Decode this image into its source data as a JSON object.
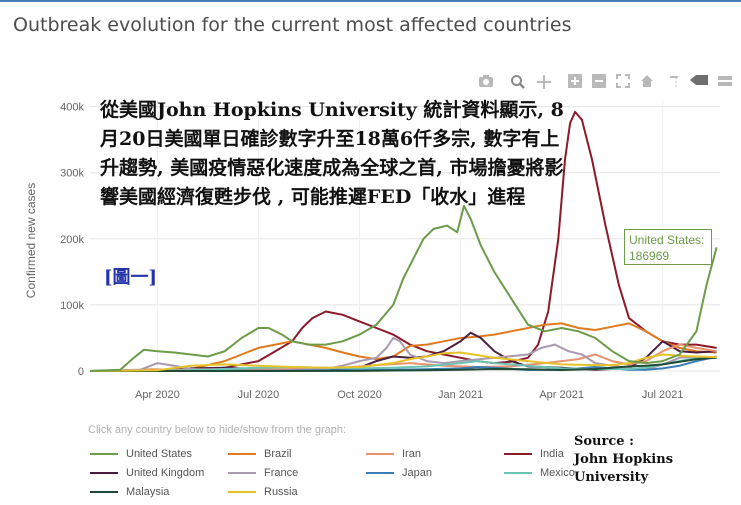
{
  "title": "Outbreak evolution for the current most affected countries",
  "hint": "Click any country below to hide/show from the graph:",
  "overlay_text": "從美國John Hopkins University 統計資料顯示, 8月20日美國單日確診數字升至18萬6仟多宗, 數字有上升趨勢, 美國疫情惡化速度成為全球之首, 市場擔憂將影響美國經濟復甦步伐 , 可能推遲FED「收水」進程",
  "figure_label": "[圖一]",
  "source_line1": "Source :",
  "source_line2": "John Hopkins University",
  "tooltip": {
    "country": "United States:",
    "value": "186969"
  },
  "modebar_icons": [
    "camera-icon",
    "zoom-icon",
    "pan-icon",
    "zoom-in-icon",
    "zoom-out-icon",
    "autoscale-icon",
    "reset-axes-icon",
    "spike-lines-icon",
    "hover-closest-icon",
    "hover-compare-icon"
  ],
  "chart_data": {
    "type": "line",
    "title": "Outbreak evolution for the current most affected countries",
    "xlabel": "",
    "ylabel": "Confirmed new cases",
    "x_ticks": [
      "Apr 2020",
      "Jul 2020",
      "Oct 2020",
      "Jan 2021",
      "Apr 2021",
      "Jul 2021"
    ],
    "y_ticks": [
      "0",
      "100k",
      "200k",
      "300k",
      "400k"
    ],
    "ylim": [
      0,
      410000
    ],
    "x_unit": "months since Jan 2020",
    "xlim": [
      1,
      19.7
    ],
    "series": [
      {
        "name": "United States",
        "color": "#6c9b4a",
        "x": [
          1,
          1.9,
          2.3,
          2.6,
          3,
          3.5,
          4,
          4.5,
          5,
          5.5,
          6,
          6.3,
          6.5,
          6.7,
          7,
          7.5,
          8,
          8.5,
          9,
          9.5,
          10,
          10.3,
          10.6,
          10.9,
          11.2,
          11.6,
          11.9,
          12.1,
          12.3,
          12.6,
          13,
          13.5,
          14,
          14.5,
          15,
          15.5,
          16,
          16.5,
          17,
          17.5,
          18,
          18.5,
          19,
          19.3,
          19.6
        ],
        "y": [
          0,
          2000,
          20000,
          32000,
          30000,
          28000,
          25000,
          22000,
          30000,
          50000,
          65000,
          65000,
          60000,
          55000,
          45000,
          40000,
          40000,
          45000,
          55000,
          70000,
          100000,
          140000,
          170000,
          200000,
          215000,
          220000,
          210000,
          250000,
          230000,
          190000,
          150000,
          110000,
          70000,
          60000,
          65000,
          60000,
          50000,
          30000,
          15000,
          12000,
          15000,
          25000,
          60000,
          130000,
          187000
        ]
      },
      {
        "name": "India",
        "color": "#8b1a2b",
        "x": [
          1,
          4,
          5,
          6,
          6.5,
          7,
          7.3,
          7.6,
          8,
          8.5,
          9,
          9.5,
          10,
          10.5,
          11,
          11.5,
          12,
          12.5,
          13,
          13.5,
          14,
          14.3,
          14.6,
          14.9,
          15.1,
          15.25,
          15.4,
          15.6,
          15.9,
          16.3,
          16.7,
          17,
          17.5,
          18,
          18.5,
          19,
          19.6
        ],
        "y": [
          0,
          0,
          5000,
          15000,
          30000,
          45000,
          65000,
          80000,
          90000,
          85000,
          75000,
          65000,
          55000,
          40000,
          30000,
          25000,
          20000,
          15000,
          12000,
          14000,
          20000,
          40000,
          90000,
          200000,
          320000,
          375000,
          392000,
          380000,
          320000,
          220000,
          130000,
          80000,
          60000,
          45000,
          40000,
          40000,
          35000
        ]
      },
      {
        "name": "Brazil",
        "color": "#e07a1f",
        "x": [
          1,
          3.5,
          4,
          5,
          5.5,
          6,
          6.5,
          7,
          7.5,
          8,
          8.5,
          9,
          9.5,
          10,
          10.5,
          11,
          11.5,
          12,
          12.5,
          13,
          13.5,
          14,
          14.5,
          15,
          15.5,
          16,
          16.5,
          17,
          17.5,
          18,
          18.5,
          19,
          19.6
        ],
        "y": [
          0,
          500,
          3000,
          15000,
          25000,
          35000,
          40000,
          45000,
          40000,
          35000,
          28000,
          22000,
          18000,
          22000,
          38000,
          40000,
          45000,
          50000,
          52000,
          55000,
          60000,
          65000,
          70000,
          72000,
          65000,
          62000,
          67000,
          72000,
          60000,
          45000,
          35000,
          30000,
          28000
        ]
      },
      {
        "name": "United Kingdom",
        "color": "#4b1e3f",
        "x": [
          1,
          3,
          4,
          5,
          6,
          7,
          8,
          8.5,
          9,
          9.5,
          10,
          10.5,
          11,
          11.5,
          12,
          12.3,
          12.6,
          13,
          13.5,
          14,
          15,
          16,
          16.5,
          17,
          17.5,
          18,
          18.5,
          19,
          19.6
        ],
        "y": [
          0,
          1000,
          4000,
          5000,
          3000,
          1500,
          1000,
          3000,
          5000,
          15000,
          22000,
          20000,
          22000,
          30000,
          45000,
          58000,
          50000,
          30000,
          15000,
          7000,
          5000,
          2000,
          3000,
          5000,
          20000,
          45000,
          30000,
          28000,
          30000
        ]
      },
      {
        "name": "Iran",
        "color": "#e8926f",
        "x": [
          1,
          2.2,
          2.8,
          3.5,
          4.5,
          5.5,
          6.5,
          7.5,
          8.5,
          9.5,
          10.5,
          11.5,
          12.5,
          13.5,
          14.5,
          15.5,
          16,
          16.5,
          17,
          17.5,
          18,
          18.5,
          19,
          19.6
        ],
        "y": [
          0,
          1000,
          2500,
          2000,
          2500,
          2500,
          2500,
          3500,
          5000,
          9000,
          12000,
          8000,
          6000,
          7000,
          12000,
          18000,
          25000,
          15000,
          10000,
          15000,
          30000,
          40000,
          35000,
          30000
        ]
      },
      {
        "name": "France",
        "color": "#a89aaf",
        "x": [
          1,
          2.5,
          3,
          3.5,
          4,
          5,
          6,
          7,
          8,
          8.5,
          9,
          9.5,
          9.8,
          10,
          10.2,
          10.5,
          11,
          11.5,
          12,
          13,
          14,
          14.4,
          14.8,
          15.2,
          15.6,
          16,
          16.5,
          17,
          17.5,
          18,
          18.5,
          19,
          19.6
        ],
        "y": [
          0,
          2000,
          12000,
          8000,
          3000,
          1000,
          500,
          1000,
          3000,
          8000,
          15000,
          20000,
          35000,
          50000,
          45000,
          25000,
          15000,
          12000,
          15000,
          20000,
          25000,
          35000,
          40000,
          30000,
          25000,
          12000,
          8000,
          4000,
          2000,
          10000,
          20000,
          22000,
          20000
        ]
      },
      {
        "name": "Japan",
        "color": "#3a7fb6",
        "x": [
          1,
          7,
          8,
          10,
          11,
          12,
          12.5,
          13,
          14,
          15,
          15.5,
          16,
          16.5,
          17,
          17.5,
          18,
          18.5,
          19,
          19.6
        ],
        "y": [
          0,
          500,
          1000,
          2000,
          2500,
          4000,
          6000,
          5000,
          1500,
          2000,
          4000,
          6000,
          4000,
          2000,
          2000,
          4000,
          8000,
          15000,
          22000
        ]
      },
      {
        "name": "Mexico",
        "color": "#6cc4b4",
        "x": [
          1,
          4,
          5,
          6,
          7,
          8,
          9,
          10,
          11,
          12,
          12.5,
          13,
          14,
          15,
          16,
          17,
          17.5,
          18,
          18.5,
          19,
          19.6
        ],
        "y": [
          0,
          1000,
          3000,
          5000,
          6000,
          5000,
          4000,
          5000,
          7000,
          12000,
          15000,
          12000,
          8000,
          4000,
          3000,
          3000,
          5000,
          10000,
          15000,
          20000,
          20000
        ]
      },
      {
        "name": "Malaysia",
        "color": "#1f4a35",
        "x": [
          1,
          9,
          10,
          11,
          12,
          13,
          14,
          15,
          16,
          16.5,
          17,
          17.5,
          18,
          18.5,
          19,
          19.6
        ],
        "y": [
          0,
          200,
          800,
          1000,
          2000,
          3000,
          2500,
          1500,
          3000,
          5000,
          7000,
          8000,
          10000,
          14000,
          18000,
          20000
        ]
      },
      {
        "name": "Russia",
        "color": "#e6c229",
        "x": [
          1,
          3,
          4,
          5,
          6,
          7,
          8,
          9,
          10,
          10.5,
          11,
          11.5,
          12,
          12.5,
          13,
          14,
          15,
          16,
          16.5,
          17,
          17.5,
          18,
          18.5,
          19,
          19.6
        ],
        "y": [
          0,
          1000,
          8000,
          10000,
          8000,
          6000,
          5000,
          6000,
          12000,
          18000,
          22000,
          27000,
          28000,
          24000,
          20000,
          15000,
          10000,
          9000,
          9000,
          12000,
          20000,
          25000,
          23000,
          22000,
          21000
        ]
      }
    ]
  }
}
